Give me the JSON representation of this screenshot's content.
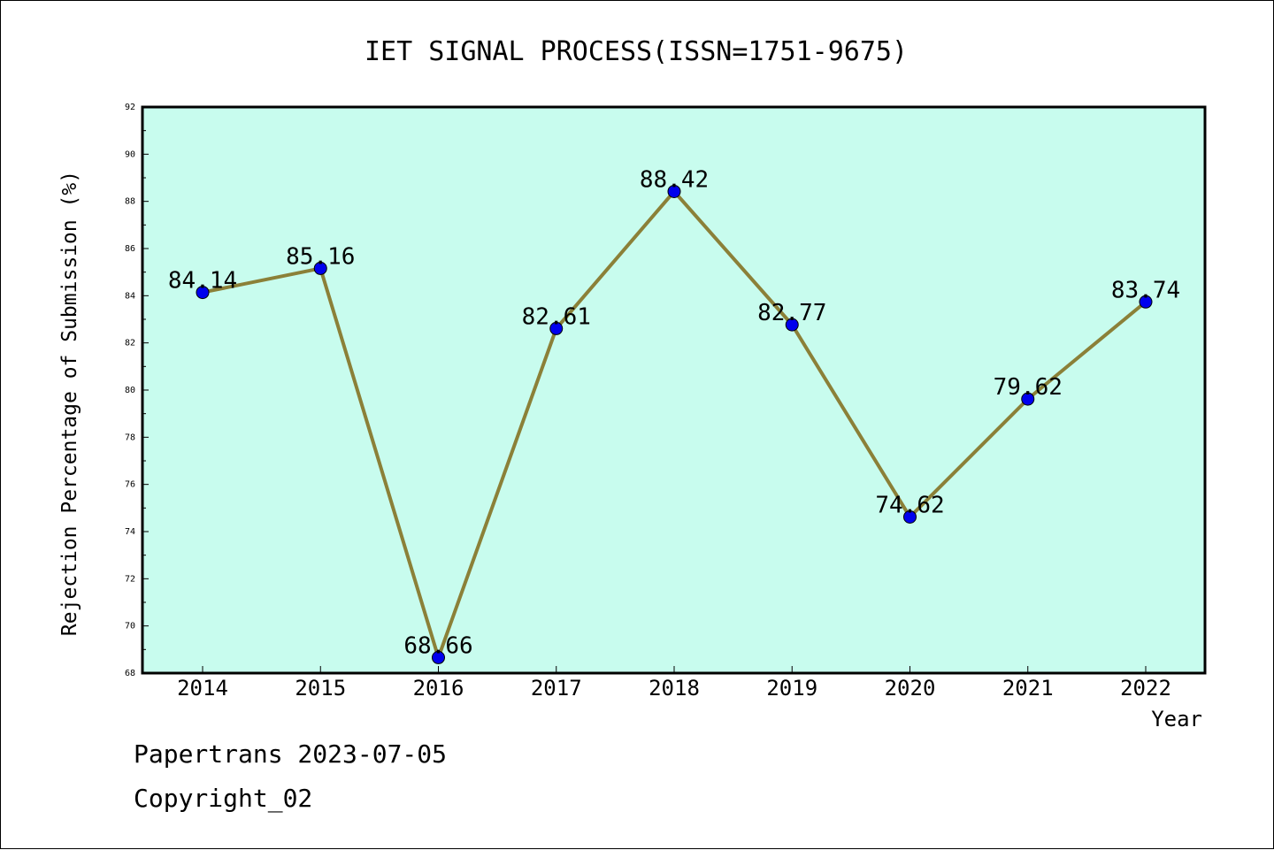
{
  "chart_data": {
    "type": "line",
    "title": "IET SIGNAL PROCESS(ISSN=1751-9675)",
    "xlabel": "Year",
    "ylabel": "Rejection Percentage of Submission (%)",
    "categories": [
      "2014",
      "2015",
      "2016",
      "2017",
      "2018",
      "2019",
      "2020",
      "2021",
      "2022"
    ],
    "values": [
      84.14,
      85.16,
      68.66,
      82.61,
      88.42,
      82.77,
      74.62,
      79.62,
      83.74
    ],
    "data_labels": [
      "84.14",
      "85.16",
      "68.66",
      "82.61",
      "88.42",
      "82.77",
      "74.62",
      "79.62",
      "83.74"
    ],
    "ylim": [
      68,
      92
    ],
    "yticks": [
      68,
      70,
      72,
      74,
      76,
      78,
      80,
      82,
      84,
      86,
      88,
      90,
      92
    ],
    "grid": false,
    "colors": {
      "plot_background": "#c8fcee",
      "line": "#8b8038",
      "marker": "#0000ee"
    }
  },
  "footer": {
    "line1": "Papertrans 2023-07-05",
    "line2": "Copyright_02"
  }
}
